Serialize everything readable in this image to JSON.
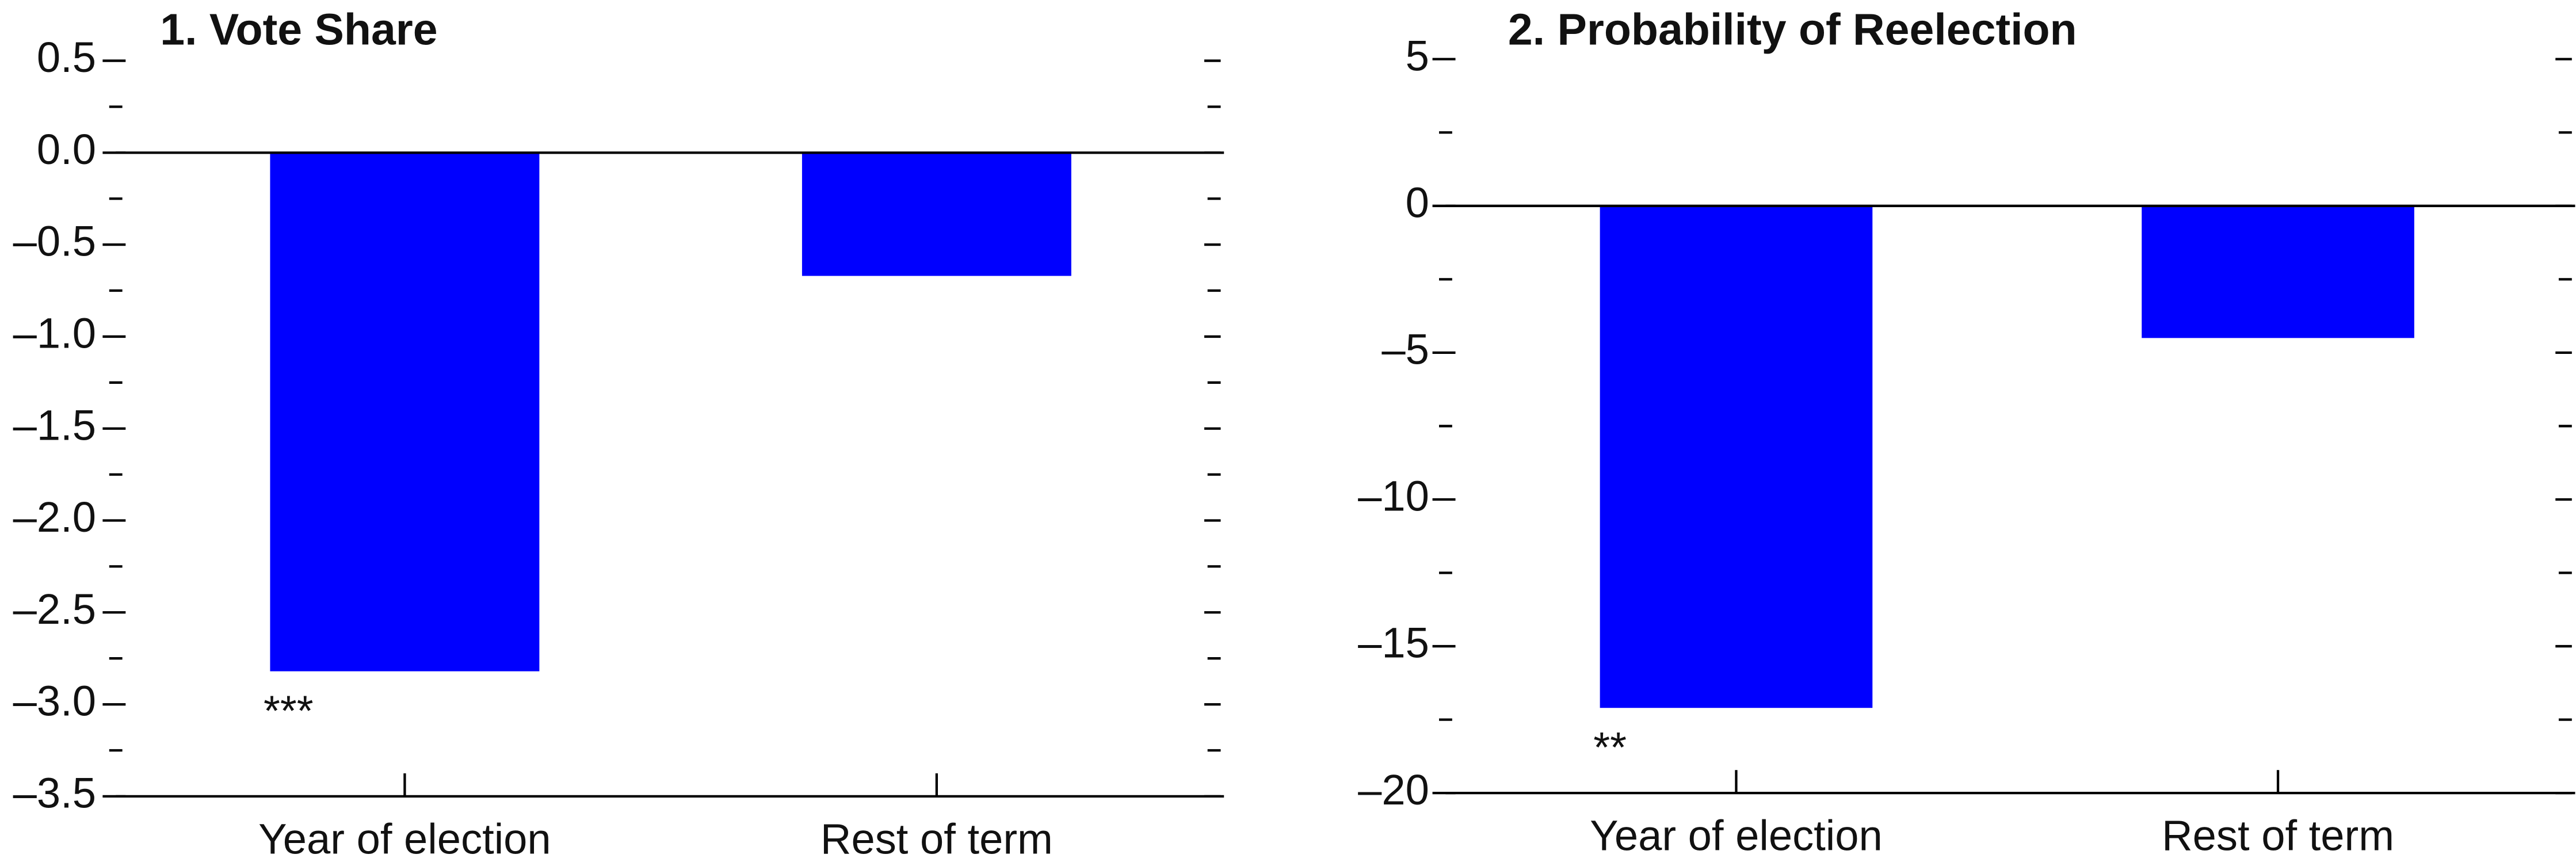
{
  "chart_data": [
    {
      "type": "bar",
      "title": "1. Vote Share",
      "categories": [
        "Year of election",
        "Rest of term"
      ],
      "values": [
        -2.82,
        -0.67
      ],
      "annotations": [
        "***",
        null
      ],
      "color": "#0000ff",
      "ylim": [
        -3.5,
        0.5
      ],
      "yticks": [
        {
          "value": -3.5,
          "label": "–3.5"
        },
        {
          "value": -3,
          "label": "–3.0"
        },
        {
          "value": -2.5,
          "label": "–2.5"
        },
        {
          "value": -2,
          "label": "–2.0"
        },
        {
          "value": -1.5,
          "label": "–1.5"
        },
        {
          "value": -1,
          "label": "–1.0"
        },
        {
          "value": -0.5,
          "label": "–0.5"
        },
        {
          "value": 0,
          "label": "0.0"
        },
        0.5
      ],
      "minor_yticks": [
        -3.25,
        -2.75,
        -2.25,
        -1.75,
        -1.25,
        -0.75,
        -0.25,
        0.25
      ]
    },
    {
      "type": "bar",
      "title": "2. Probability of Reelection",
      "categories": [
        "Year of election",
        "Rest of term"
      ],
      "values": [
        -17.1,
        -4.5
      ],
      "annotations": [
        "**",
        null
      ],
      "color": "#0000ff",
      "ylim": [
        -20,
        5
      ],
      "yticks": [
        {
          "value": -20,
          "label": "–20"
        },
        {
          "value": -15,
          "label": "–15"
        },
        {
          "value": -10,
          "label": "–10"
        },
        {
          "value": -5,
          "label": "–5"
        },
        0,
        5
      ],
      "minor_yticks": [
        -17.5,
        -12.5,
        -7.5,
        -2.5,
        2.5
      ]
    }
  ]
}
